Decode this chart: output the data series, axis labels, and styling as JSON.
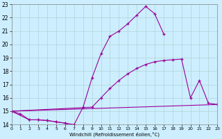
{
  "xlabel": "Windchill (Refroidissement éolien,°C)",
  "bg_color": "#cceeff",
  "grid_color": "#aacccc",
  "line_color": "#990099",
  "xlim": [
    0,
    23
  ],
  "ylim": [
    14,
    23
  ],
  "yticks": [
    14,
    15,
    16,
    17,
    18,
    19,
    20,
    21,
    22,
    23
  ],
  "xticks": [
    0,
    1,
    2,
    3,
    4,
    5,
    6,
    7,
    8,
    9,
    10,
    11,
    12,
    13,
    14,
    15,
    16,
    17,
    18,
    19,
    20,
    21,
    22,
    23
  ],
  "series": [
    {
      "x": [
        0,
        1,
        2,
        3,
        4,
        5,
        6,
        7,
        8
      ],
      "y": [
        15.0,
        14.8,
        14.35,
        14.35,
        14.3,
        14.2,
        14.1,
        13.85,
        13.75
      ]
    },
    {
      "x": [
        0,
        2,
        3,
        4,
        5,
        6,
        7,
        8,
        9,
        10,
        11,
        12,
        13,
        14,
        15,
        16,
        17
      ],
      "y": [
        15.0,
        14.35,
        14.35,
        14.3,
        14.2,
        14.1,
        14.0,
        15.3,
        17.5,
        19.3,
        20.6,
        21.0,
        21.55,
        22.2,
        22.85,
        22.3,
        20.8
      ]
    },
    {
      "x": [
        0,
        9,
        10,
        11,
        12,
        13,
        14,
        15,
        16,
        17,
        18,
        19,
        20,
        21,
        22,
        23
      ],
      "y": [
        15.0,
        15.3,
        16.0,
        16.7,
        17.3,
        17.8,
        18.2,
        18.5,
        18.7,
        18.8,
        18.85,
        18.9,
        16.0,
        17.3,
        15.6,
        15.5
      ]
    },
    {
      "x": [
        0,
        23
      ],
      "y": [
        15.0,
        15.5
      ]
    }
  ]
}
